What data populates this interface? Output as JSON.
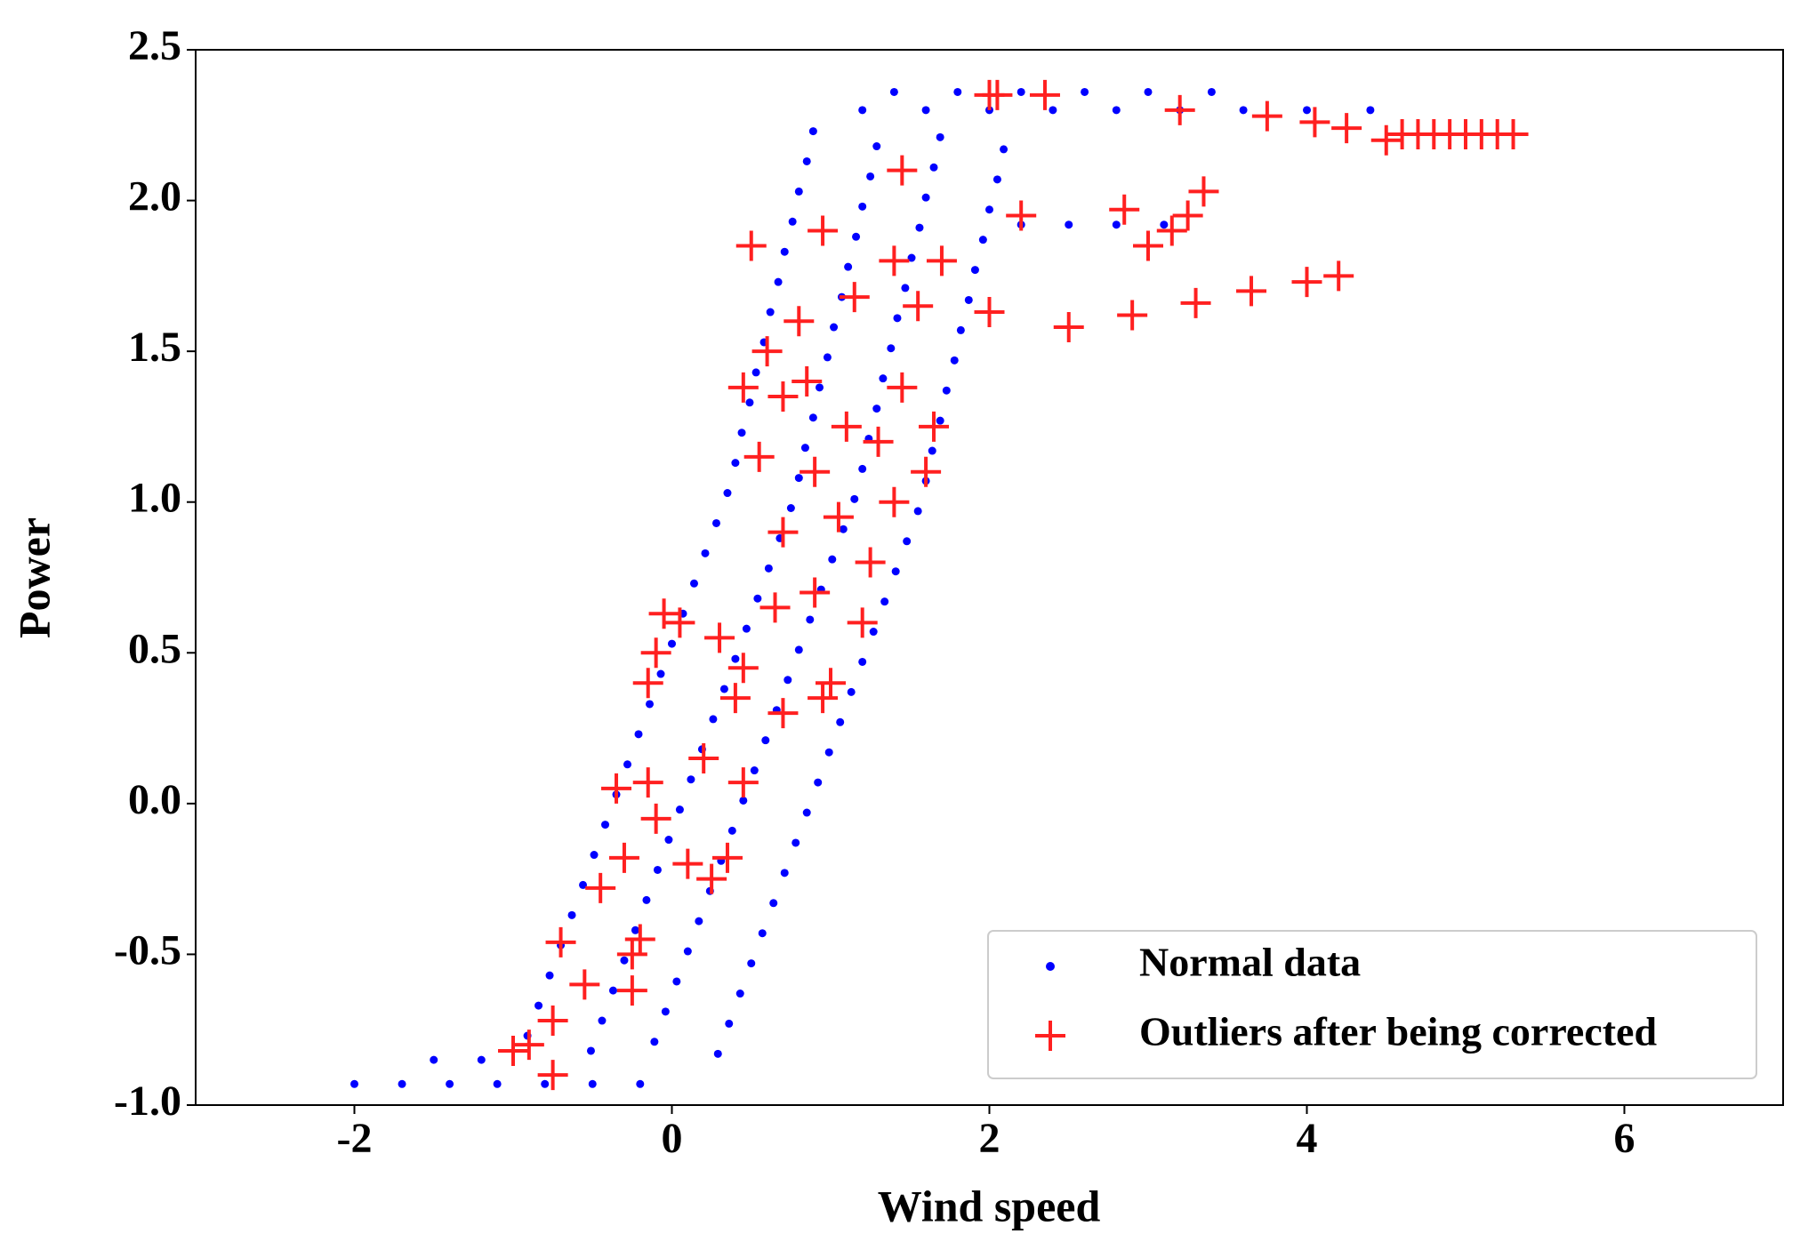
{
  "chart_data": {
    "type": "scatter",
    "x_label": "Wind speed",
    "y_label": "Power",
    "xlim": [
      -3,
      7
    ],
    "xticks": [
      -2,
      0,
      2,
      4,
      6
    ],
    "ylim": [
      -1.0,
      2.5
    ],
    "yticks": [
      {
        "value": -1.0,
        "label": "-1.0"
      },
      -0.5,
      {
        "value": 0.0,
        "label": "0.0"
      },
      0.5,
      {
        "value": 1.0,
        "label": "1.0"
      },
      1.5,
      {
        "value": 2.0,
        "label": "2.0"
      },
      2.5
    ],
    "legend": "lower right",
    "series": [
      {
        "name": "Normal data",
        "color": "#0000ff",
        "marker": "dot",
        "x": [
          -0.91,
          -0.51,
          -0.11,
          0.29,
          -0.84,
          -0.44,
          -0.04,
          0.36,
          -0.77,
          -0.37,
          0.03,
          0.43,
          -0.7,
          -0.3,
          0.1,
          0.5,
          -0.63,
          -0.23,
          0.17,
          0.57,
          -0.56,
          -0.16,
          0.24,
          0.64,
          -0.49,
          -0.09,
          0.31,
          0.71,
          -0.42,
          -0.02,
          0.38,
          0.78,
          -0.35,
          0.05,
          0.45,
          0.85,
          -0.28,
          0.12,
          0.52,
          0.92,
          -0.21,
          0.19,
          0.59,
          0.99,
          -0.14,
          0.26,
          0.66,
          1.06,
          -0.07,
          0.33,
          0.73,
          1.13,
          0.0,
          0.4,
          0.8,
          1.2,
          0.07,
          0.47,
          0.87,
          1.27,
          0.14,
          0.54,
          0.94,
          1.34,
          0.21,
          0.61,
          1.01,
          1.41,
          0.28,
          0.68,
          1.08,
          1.48,
          0.35,
          0.75,
          1.15,
          1.55,
          0.4,
          0.8,
          1.2,
          1.6,
          0.44,
          0.84,
          1.24,
          1.64,
          0.49,
          0.89,
          1.29,
          1.69,
          0.53,
          0.93,
          1.33,
          1.73,
          0.58,
          0.98,
          1.38,
          1.78,
          0.62,
          1.02,
          1.42,
          1.82,
          0.67,
          1.07,
          1.47,
          1.87,
          0.71,
          1.11,
          1.51,
          1.91,
          0.76,
          1.16,
          1.56,
          1.96,
          0.8,
          1.2,
          1.6,
          2.0,
          0.85,
          1.25,
          1.65,
          2.05,
          0.89,
          1.29,
          1.69,
          2.09,
          1.2,
          1.6,
          2.0,
          2.4,
          2.8,
          3.2,
          3.6,
          4.0,
          4.4,
          1.4,
          1.8,
          2.2,
          2.6,
          3.0,
          3.4,
          2.2,
          2.5,
          2.8,
          3.1,
          -2.0,
          -1.7,
          -1.4,
          -1.1,
          -0.8,
          -0.5,
          -0.2,
          -1.5,
          -1.2
        ],
        "values": [
          -0.77,
          -0.82,
          -0.79,
          -0.83,
          -0.67,
          -0.72,
          -0.69,
          -0.73,
          -0.57,
          -0.62,
          -0.59,
          -0.63,
          -0.47,
          -0.52,
          -0.49,
          -0.53,
          -0.37,
          -0.42,
          -0.39,
          -0.43,
          -0.27,
          -0.32,
          -0.29,
          -0.33,
          -0.17,
          -0.22,
          -0.19,
          -0.23,
          -0.07,
          -0.12,
          -0.09,
          -0.13,
          0.03,
          -0.02,
          0.01,
          -0.03,
          0.13,
          0.08,
          0.11,
          0.07,
          0.23,
          0.18,
          0.21,
          0.17,
          0.33,
          0.28,
          0.31,
          0.27,
          0.43,
          0.38,
          0.41,
          0.37,
          0.53,
          0.48,
          0.51,
          0.47,
          0.63,
          0.58,
          0.61,
          0.57,
          0.73,
          0.68,
          0.71,
          0.67,
          0.83,
          0.78,
          0.81,
          0.77,
          0.93,
          0.88,
          0.91,
          0.87,
          1.03,
          0.98,
          1.01,
          0.97,
          1.13,
          1.08,
          1.11,
          1.07,
          1.23,
          1.18,
          1.21,
          1.17,
          1.33,
          1.28,
          1.31,
          1.27,
          1.43,
          1.38,
          1.41,
          1.37,
          1.53,
          1.48,
          1.51,
          1.47,
          1.63,
          1.58,
          1.61,
          1.57,
          1.73,
          1.68,
          1.71,
          1.67,
          1.83,
          1.78,
          1.81,
          1.77,
          1.93,
          1.88,
          1.91,
          1.87,
          2.03,
          1.98,
          2.01,
          1.97,
          2.13,
          2.08,
          2.11,
          2.07,
          2.23,
          2.18,
          2.21,
          2.17,
          2.3,
          2.3,
          2.3,
          2.3,
          2.3,
          2.3,
          2.3,
          2.3,
          2.3,
          2.36,
          2.36,
          2.36,
          2.36,
          2.36,
          2.36,
          1.92,
          1.92,
          1.92,
          1.92,
          -0.93,
          -0.93,
          -0.93,
          -0.93,
          -0.93,
          -0.93,
          -0.93,
          -0.85,
          -0.85
        ]
      },
      {
        "name": "Outliers after being corrected",
        "color": "#ff2020",
        "marker": "plus",
        "x": [
          -1.0,
          -0.9,
          -0.75,
          -0.75,
          -0.7,
          -0.55,
          -0.45,
          -0.35,
          -0.3,
          -0.25,
          -0.25,
          -0.2,
          -0.15,
          -0.1,
          -0.15,
          -0.1,
          -0.05,
          0.05,
          0.1,
          0.2,
          0.25,
          0.3,
          0.35,
          0.4,
          0.45,
          0.45,
          0.5,
          0.45,
          0.55,
          0.6,
          0.65,
          0.7,
          0.7,
          0.7,
          0.8,
          0.85,
          0.9,
          0.9,
          0.95,
          0.95,
          1.0,
          1.05,
          1.1,
          1.15,
          1.2,
          1.25,
          1.3,
          1.4,
          1.4,
          1.45,
          1.45,
          1.55,
          1.6,
          1.7,
          1.65,
          2.0,
          2.05,
          2.35,
          2.2,
          2.0,
          2.5,
          2.9,
          3.3,
          3.65,
          4.0,
          4.2,
          2.85,
          3.0,
          3.15,
          3.25,
          3.35,
          3.2,
          3.75,
          4.05,
          4.25,
          4.5,
          4.6,
          4.7,
          4.8,
          4.9,
          5.0,
          5.1,
          5.2,
          5.3
        ],
        "values": [
          -0.82,
          -0.8,
          -0.9,
          -0.72,
          -0.46,
          -0.6,
          -0.28,
          0.05,
          -0.18,
          -0.5,
          -0.62,
          -0.45,
          0.07,
          -0.05,
          0.4,
          0.5,
          0.63,
          0.6,
          -0.2,
          0.15,
          -0.25,
          0.55,
          -0.18,
          0.35,
          0.45,
          0.07,
          1.85,
          1.38,
          1.15,
          1.5,
          0.65,
          0.3,
          1.35,
          0.9,
          1.6,
          1.4,
          1.1,
          0.7,
          1.9,
          0.35,
          0.4,
          0.95,
          1.25,
          1.68,
          0.6,
          0.8,
          1.2,
          1.8,
          1.0,
          1.38,
          2.1,
          1.65,
          1.1,
          1.8,
          1.25,
          2.35,
          2.35,
          2.35,
          1.95,
          1.63,
          1.58,
          1.62,
          1.66,
          1.7,
          1.73,
          1.75,
          1.97,
          1.85,
          1.9,
          1.95,
          2.03,
          2.3,
          2.28,
          2.26,
          2.24,
          2.2,
          2.22,
          2.22,
          2.22,
          2.22,
          2.22,
          2.22,
          2.22,
          2.22
        ]
      }
    ]
  }
}
